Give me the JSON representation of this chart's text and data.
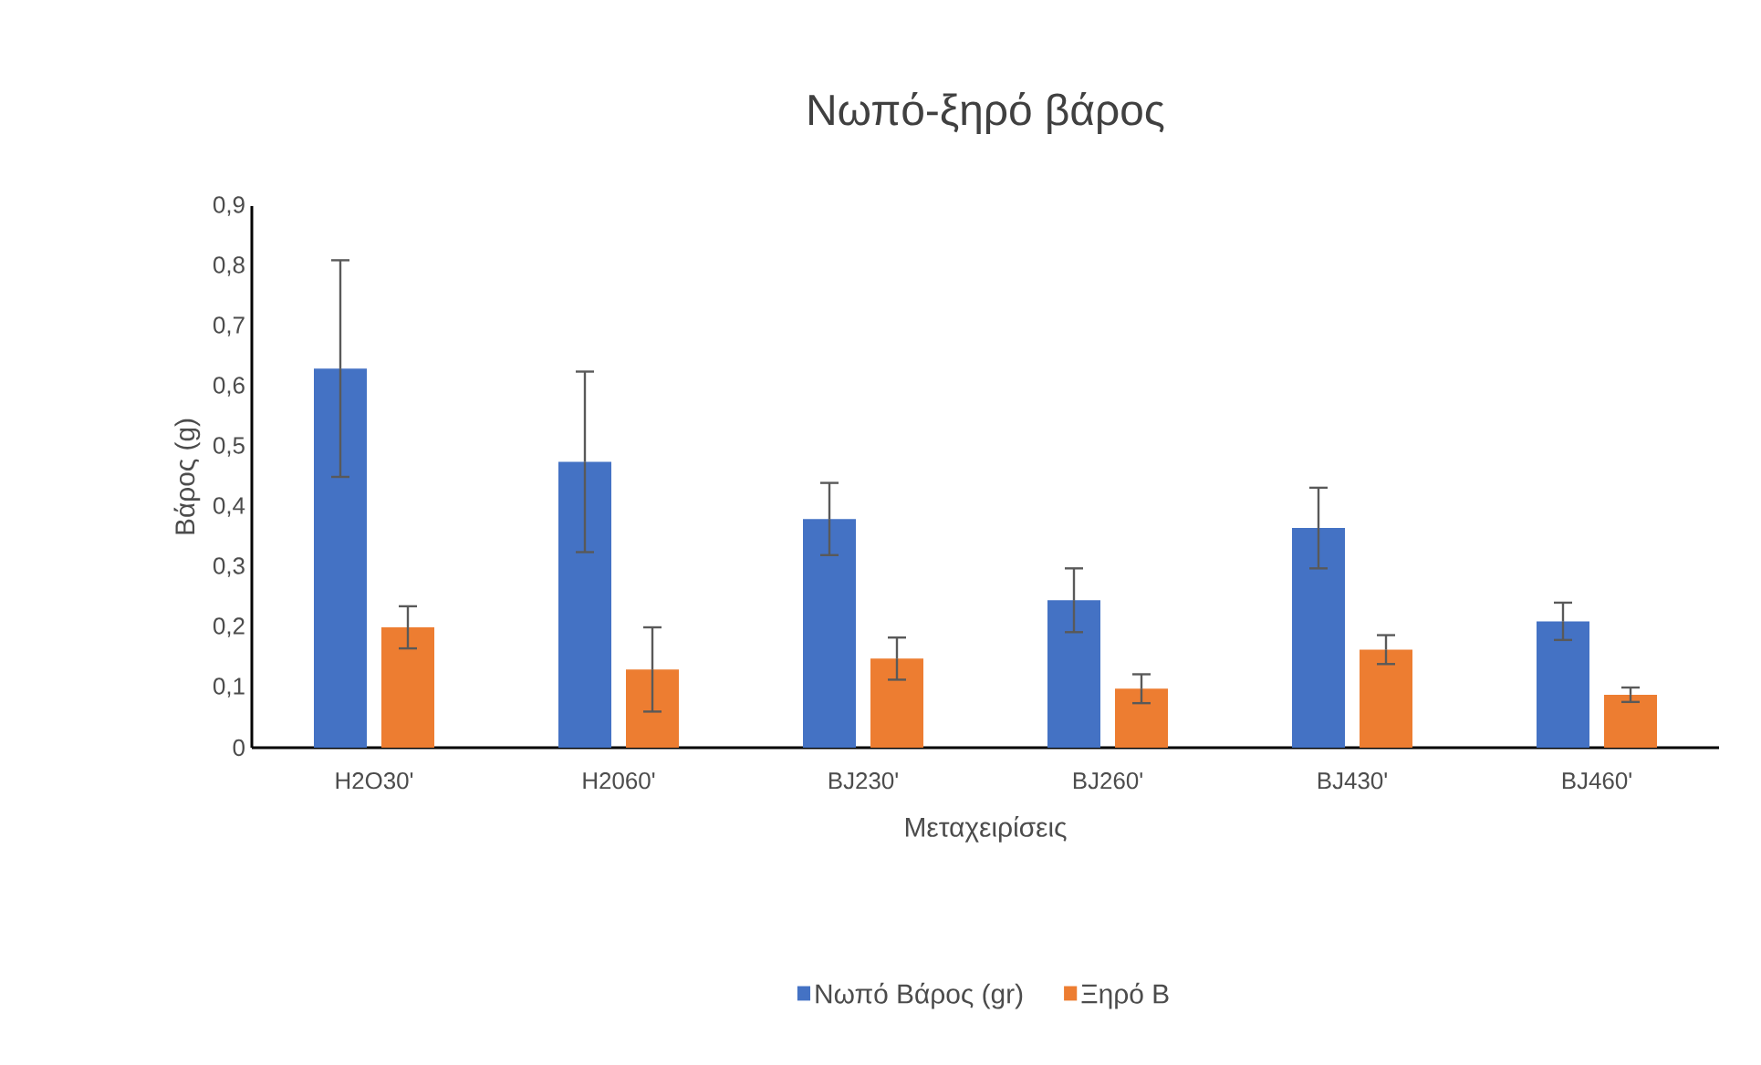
{
  "chart_data": {
    "type": "bar",
    "title": "Νωπό-ξηρό βάρος",
    "xlabel": "Μεταχειρίσεις",
    "ylabel": "Βάρος (g)",
    "categories": [
      "H2O30'",
      "H2060'",
      "BJ230'",
      "BJ260'",
      "BJ430'",
      "BJ460'"
    ],
    "series": [
      {
        "name": "Νωπό Βάρος (gr)",
        "color": "#4472c4",
        "values": [
          0.63,
          0.475,
          0.38,
          0.245,
          0.365,
          0.21
        ],
        "errors": [
          0.18,
          0.15,
          0.06,
          0.053,
          0.067,
          0.031
        ]
      },
      {
        "name": "Ξηρό Β",
        "color": "#ed7d31",
        "values": [
          0.2,
          0.13,
          0.148,
          0.098,
          0.163,
          0.088
        ],
        "errors": [
          0.035,
          0.07,
          0.035,
          0.024,
          0.024,
          0.012
        ]
      }
    ],
    "ylim": [
      0,
      0.9
    ],
    "yticks": [
      0,
      {
        "value": 0.1,
        "label": "0,1"
      },
      {
        "value": 0.2,
        "label": "0,2"
      },
      {
        "value": 0.3,
        "label": "0,3"
      },
      {
        "value": 0.4,
        "label": "0,4"
      },
      {
        "value": 0.5,
        "label": "0,5"
      },
      {
        "value": 0.6,
        "label": "0,6"
      },
      {
        "value": 0.7,
        "label": "0,7"
      },
      {
        "value": 0.8,
        "label": "0,8"
      },
      {
        "value": 0.9,
        "label": "0,9"
      }
    ],
    "legend": "bottom"
  }
}
